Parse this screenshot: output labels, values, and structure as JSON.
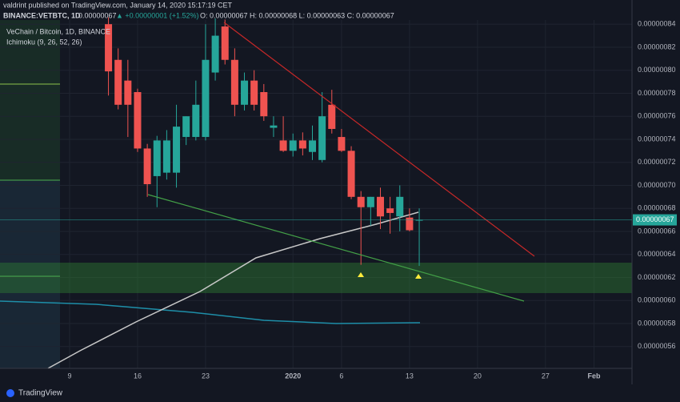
{
  "header": {
    "author_line": "valdrint published on TradingView.com, January 14, 2020 15:17:19 CET",
    "symbol": "BINANCE:VETBTC, 1D",
    "price": "0.00000067",
    "change": "▲ +0.00000001 (+1.52%)",
    "ohlc": "O: 0.00000067 H: 0.00000068 L: 0.00000063 C: 0.00000067",
    "pane_title": "VeChain / Bitcoin, 1D, BINANCE",
    "indicator": "Ichimoku (9, 26, 52, 26)",
    "brand": "TradingView"
  },
  "chart_data": {
    "type": "candlestick",
    "categories": [
      "9",
      null,
      null,
      null,
      null,
      null,
      null,
      "16",
      null,
      null,
      null,
      null,
      null,
      null,
      "23",
      null,
      null,
      null,
      null,
      null,
      null,
      null,
      null,
      "2020",
      null,
      null,
      null,
      null,
      "6",
      null,
      null,
      null,
      null,
      null,
      null,
      "13",
      null,
      null,
      null,
      null,
      null,
      null,
      "20",
      null,
      null,
      null,
      null,
      null,
      null,
      "27",
      null,
      null,
      null,
      null,
      "Feb"
    ],
    "open": [
      null,
      null,
      null,
      null,
      8.4e-07,
      8.09e-07,
      7.91e-07,
      7.81e-07,
      7.32e-07,
      7.08e-07,
      7.11e-07,
      7.11e-07,
      7.42e-07,
      7.42e-07,
      7.42e-07,
      7.98e-07,
      8.38e-07,
      8.09e-07,
      7.7e-07,
      7.91e-07,
      7.81e-07,
      7.5e-07,
      7.39e-07,
      7.3e-07,
      7.39e-07,
      7.29e-07,
      7.22e-07,
      7.7e-07,
      7.42e-07,
      7.3e-07,
      6.9e-07,
      6.81e-07,
      6.9e-07,
      6.8e-07,
      6.73e-07,
      6.72e-07,
      6.7e-07,
      null,
      null,
      null,
      null,
      null,
      null,
      null,
      null,
      null,
      null,
      null,
      null,
      null,
      null,
      null,
      null,
      null,
      null
    ],
    "high": [
      null,
      null,
      null,
      null,
      8.46e-07,
      8.19e-07,
      8.09e-07,
      7.84e-07,
      7.36e-07,
      7.43e-07,
      7.48e-07,
      7.7e-07,
      7.6e-07,
      7.91e-07,
      8.4e-07,
      8.45e-07,
      8.44e-07,
      8.19e-07,
      7.98e-07,
      8e-07,
      7.88e-07,
      7.6e-07,
      7.6e-07,
      7.45e-07,
      7.46e-07,
      7.52e-07,
      7.81e-07,
      7.83e-07,
      7.49e-07,
      7.34e-07,
      6.95e-07,
      6.9e-07,
      6.98e-07,
      6.9e-07,
      7e-07,
      6.8e-07,
      6.8e-07,
      null,
      null,
      null,
      null,
      null,
      null,
      null,
      null,
      null,
      null,
      null,
      null,
      null,
      null,
      null,
      null,
      null,
      null
    ],
    "low": [
      null,
      null,
      null,
      null,
      7.78e-07,
      7.66e-07,
      7.42e-07,
      7.29e-07,
      6.9e-07,
      6.81e-07,
      7.05e-07,
      6.98e-07,
      7.35e-07,
      7.39e-07,
      7.39e-07,
      7.91e-07,
      8.05e-07,
      7.6e-07,
      7.65e-07,
      7.65e-07,
      7.56e-07,
      7.42e-07,
      7.29e-07,
      7.25e-07,
      7.26e-07,
      7.22e-07,
      7.2e-07,
      7.45e-07,
      7.29e-07,
      6.88e-07,
      6.31e-07,
      6.65e-07,
      6.62e-07,
      6.58e-07,
      6.6e-07,
      6.6e-07,
      6.3e-07,
      null,
      null,
      null,
      null,
      null,
      null,
      null,
      null,
      null,
      null,
      null,
      null,
      null,
      null,
      null,
      null,
      null,
      null
    ],
    "close": [
      null,
      null,
      null,
      null,
      7.99e-07,
      7.7e-07,
      7.7e-07,
      7.32e-07,
      7.01e-07,
      7.39e-07,
      7.39e-07,
      7.51e-07,
      7.6e-07,
      7.7e-07,
      8.09e-07,
      8.3e-07,
      8.09e-07,
      7.7e-07,
      7.91e-07,
      7.7e-07,
      7.6e-07,
      7.52e-07,
      7.3e-07,
      7.39e-07,
      7.32e-07,
      7.39e-07,
      7.6e-07,
      7.49e-07,
      7.3e-07,
      6.9e-07,
      6.81e-07,
      6.9e-07,
      6.73e-07,
      6.76e-07,
      6.9e-07,
      6.61e-07,
      6.7e-07,
      null,
      null,
      null,
      null,
      null,
      null,
      null,
      null,
      null,
      null,
      null,
      null,
      null,
      null,
      null,
      null,
      null,
      null
    ],
    "up_color": "#26a69a",
    "down_color": "#ef5350",
    "ylim": [
      5.41e-07,
      8.61e-07
    ],
    "yticks": [
      {
        "value": 5.6e-07,
        "label": "0.00000056"
      },
      {
        "value": 5.8e-07,
        "label": "0.00000058"
      },
      {
        "value": 6e-07,
        "label": "0.00000060"
      },
      {
        "value": 6.2e-07,
        "label": "0.00000062"
      },
      {
        "value": 6.4e-07,
        "label": "0.00000064"
      },
      {
        "value": 6.6e-07,
        "label": "0.00000066"
      },
      {
        "value": 6.8e-07,
        "label": "0.00000068"
      },
      {
        "value": 7e-07,
        "label": "0.00000070"
      },
      {
        "value": 7.2e-07,
        "label": "0.00000072"
      },
      {
        "value": 7.4e-07,
        "label": "0.00000074"
      },
      {
        "value": 7.6e-07,
        "label": "0.00000076"
      },
      {
        "value": 7.8e-07,
        "label": "0.00000078"
      },
      {
        "value": 8e-07,
        "label": "0.00000080"
      },
      {
        "value": 8.2e-07,
        "label": "0.00000082"
      },
      {
        "value": 8.4e-07,
        "label": "0.00000084"
      }
    ],
    "last_price": {
      "value": 6.7e-07,
      "label": "0.00000067"
    },
    "grid": true
  }
}
